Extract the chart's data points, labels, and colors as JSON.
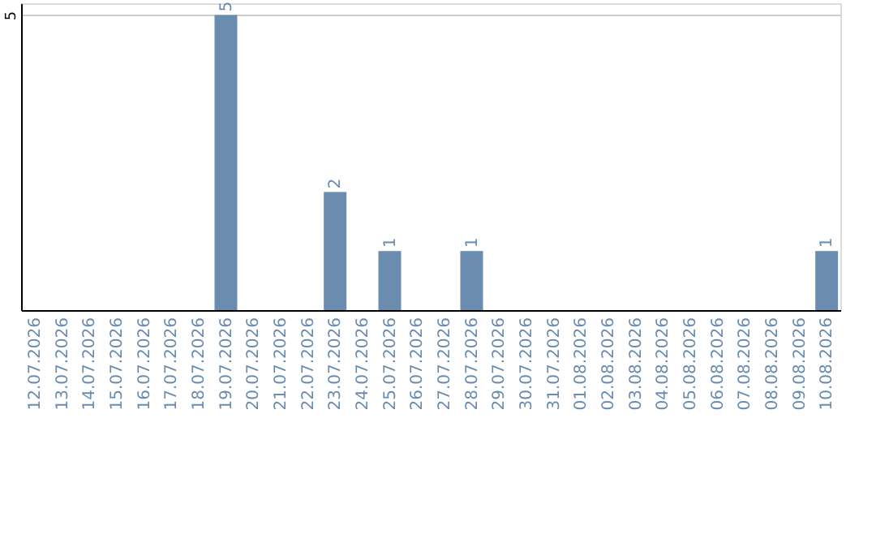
{
  "chart_data": {
    "type": "bar",
    "categories": [
      "12.07.2026",
      "13.07.2026",
      "14.07.2026",
      "15.07.2026",
      "16.07.2026",
      "17.07.2026",
      "18.07.2026",
      "19.07.2026",
      "20.07.2026",
      "21.07.2026",
      "22.07.2026",
      "23.07.2026",
      "24.07.2026",
      "25.07.2026",
      "26.07.2026",
      "27.07.2026",
      "28.07.2026",
      "29.07.2026",
      "30.07.2026",
      "31.07.2026",
      "01.08.2026",
      "02.08.2026",
      "03.08.2026",
      "04.08.2026",
      "05.08.2026",
      "06.08.2026",
      "07.08.2026",
      "08.08.2026",
      "09.08.2026",
      "10.08.2026"
    ],
    "values": [
      0,
      0,
      0,
      0,
      0,
      0,
      0,
      5,
      0,
      0,
      0,
      2,
      0,
      1,
      0,
      0,
      1,
      0,
      0,
      0,
      0,
      0,
      0,
      0,
      0,
      0,
      0,
      0,
      0,
      1
    ],
    "value_labels": [
      null,
      null,
      null,
      null,
      null,
      null,
      null,
      "5",
      null,
      null,
      null,
      "2",
      null,
      "1",
      null,
      null,
      "1",
      null,
      null,
      null,
      null,
      null,
      null,
      null,
      null,
      null,
      null,
      null,
      null,
      "1"
    ],
    "color": "#6a8caf",
    "ylim": [
      0,
      5.2
    ],
    "yticks": [
      5
    ],
    "grid": "y"
  }
}
